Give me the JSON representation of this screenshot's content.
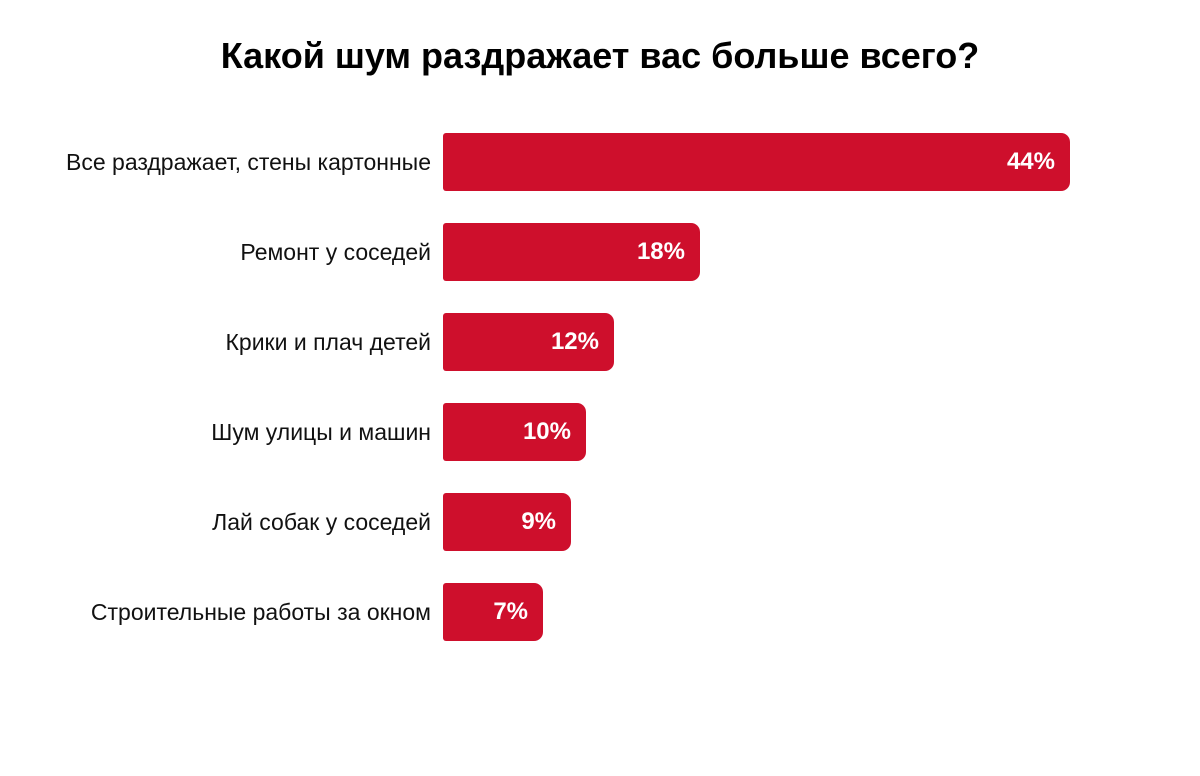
{
  "colors": {
    "bar": "#CE0F2C",
    "value_text": "#FFFFFF",
    "label_text": "#111111",
    "title_text": "#000000",
    "background": "#FFFFFF"
  },
  "chart_data": {
    "type": "bar",
    "orientation": "horizontal",
    "title": "Какой шум раздражает вас больше всего?",
    "categories": [
      "Все раздражает, стены картонные",
      "Ремонт у соседей",
      "Крики и плач детей",
      "Шум улицы и машин",
      "Лай собак у соседей",
      "Строительные работы за окном"
    ],
    "values": [
      44,
      18,
      12,
      10,
      9,
      7
    ],
    "value_labels": [
      "44%",
      "18%",
      "12%",
      "10%",
      "9%",
      "7%"
    ],
    "unit": "%",
    "xlim": [
      0,
      44
    ],
    "grid": false,
    "legend": false,
    "value_label_position": "inside-end",
    "sort": "descending"
  }
}
